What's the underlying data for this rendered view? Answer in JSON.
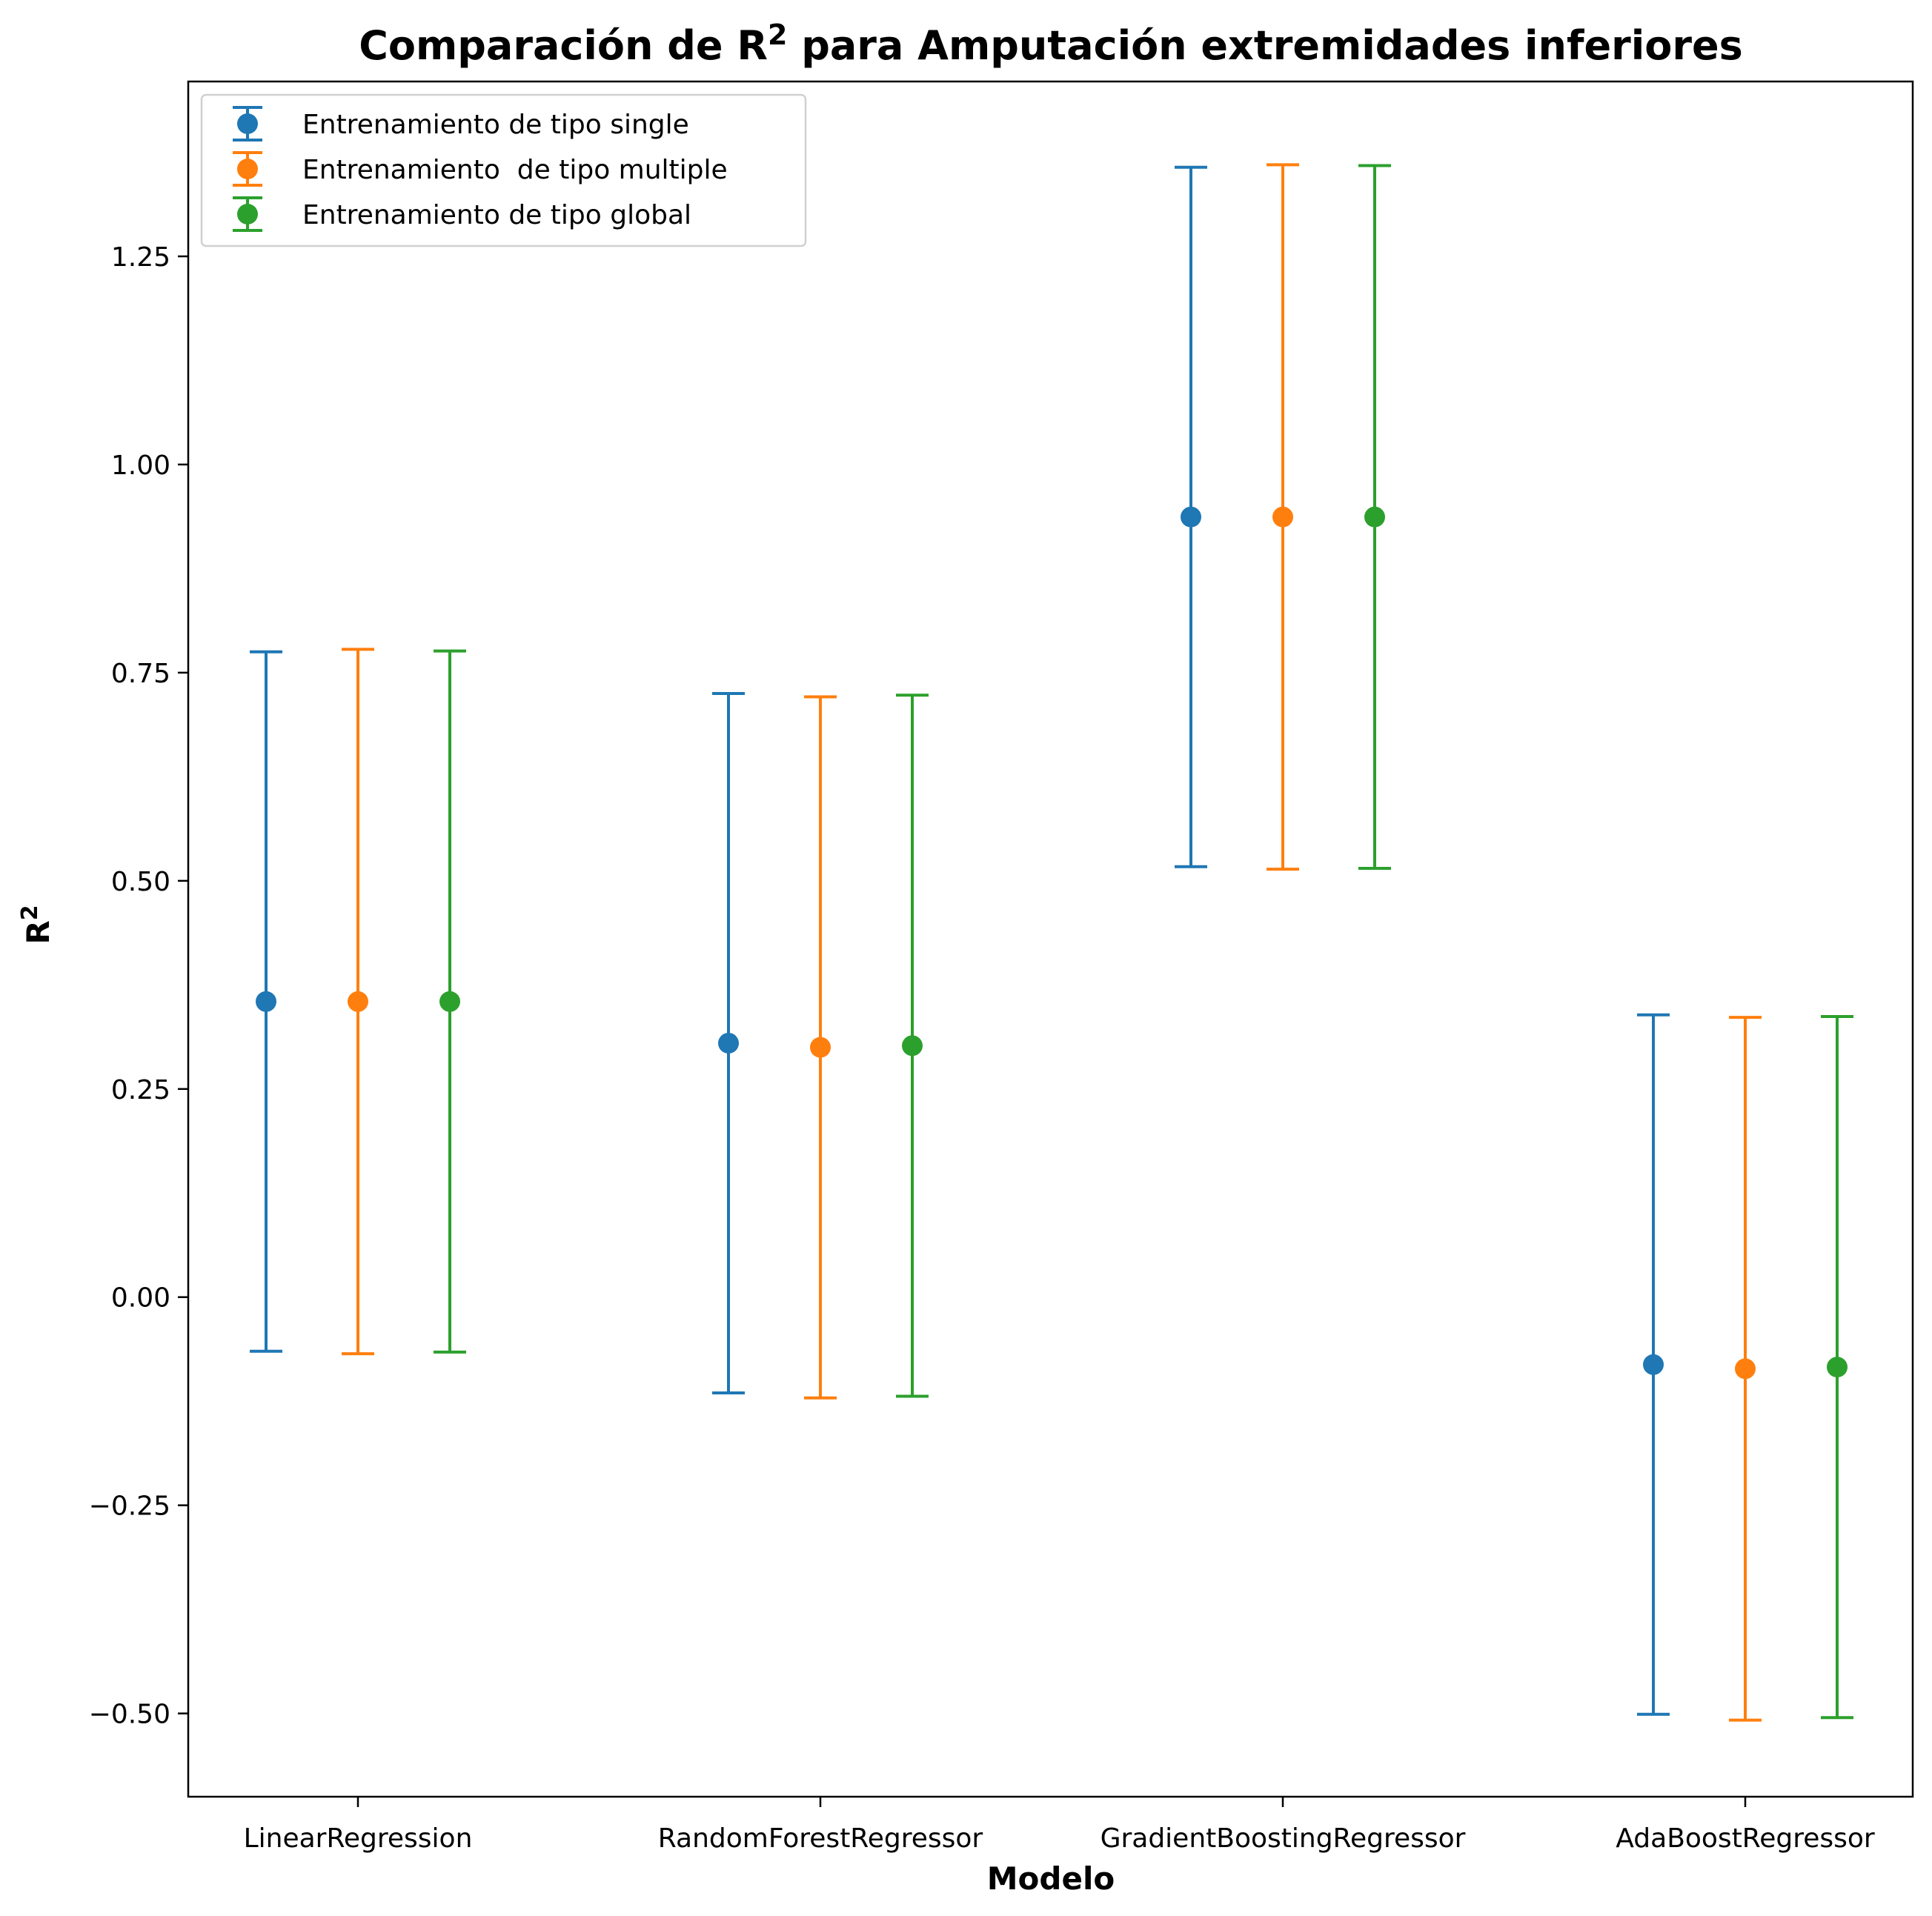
{
  "chart_data": {
    "type": "scatter",
    "title_main": "Comparación de R",
    "title_sup": "2",
    "title_rest": " para Amputación extremidades inferiores",
    "xlabel": "Modelo",
    "ylabel_main": "R",
    "ylabel_sup": "2",
    "categories": [
      "LinearRegression",
      "RandomForestRegressor",
      "GradientBoostingRegressor",
      "AdaBoostRegressor"
    ],
    "ylim": [
      -0.6,
      1.46
    ],
    "yticks": [
      -0.5,
      -0.25,
      0.0,
      0.25,
      0.5,
      0.75,
      1.0,
      1.25
    ],
    "ytick_labels": [
      "−0.50",
      "−0.25",
      "0.00",
      "0.25",
      "0.50",
      "0.75",
      "1.00",
      "1.25"
    ],
    "legend_position": "upper-left",
    "grid": false,
    "series": [
      {
        "name": "Entrenamiento de tipo single",
        "color": "#1f77b4",
        "values": [
          0.355,
          0.305,
          0.937,
          -0.081
        ],
        "errors": [
          0.42,
          0.42,
          0.42,
          0.42
        ]
      },
      {
        "name": "Entrenamiento  de tipo multiple",
        "color": "#ff7f0e",
        "values": [
          0.355,
          0.3,
          0.937,
          -0.086
        ],
        "errors": [
          0.423,
          0.421,
          0.423,
          0.422
        ]
      },
      {
        "name": "Entrenamiento de tipo global",
        "color": "#2ca02c",
        "values": [
          0.355,
          0.302,
          0.937,
          -0.084
        ],
        "errors": [
          0.421,
          0.421,
          0.422,
          0.421
        ]
      }
    ]
  }
}
